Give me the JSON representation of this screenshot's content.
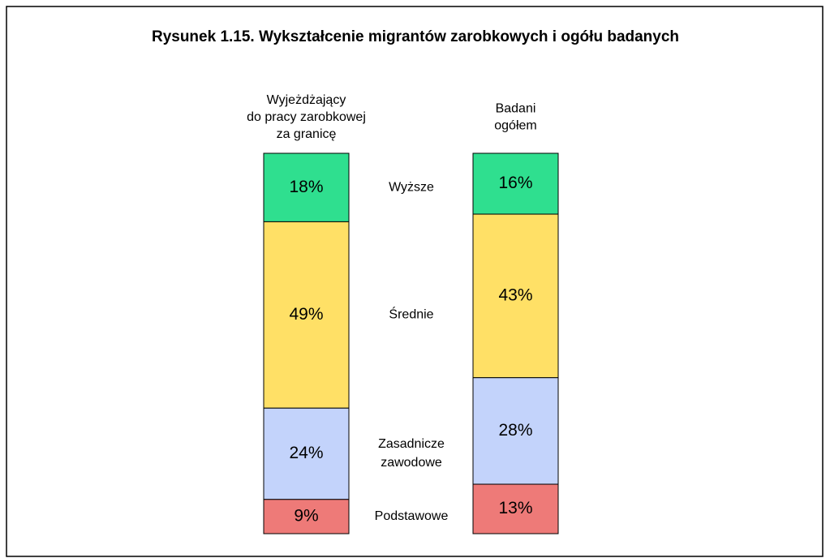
{
  "chart_data": {
    "type": "stacked_bar",
    "title": "Rysunek 1.15. Wykształcenie migrantów zarobkowych i ogółu badanych",
    "categories": [
      "Wyjeżdżający\ndo pracy zarobkowej\nza granicę",
      "Badani\nogółem"
    ],
    "series": [
      {
        "name": "Wyższe",
        "color": "#2fdf8f",
        "values": [
          18,
          16
        ],
        "value_labels": [
          "18%",
          "16%"
        ]
      },
      {
        "name": "Średnie",
        "color": "#ffe066",
        "values": [
          49,
          43
        ],
        "value_labels": [
          "49%",
          "43%"
        ]
      },
      {
        "name": "Zasadnicze\nzawodowe",
        "color": "#c3d3fb",
        "values": [
          24,
          28
        ],
        "value_labels": [
          "24%",
          "28%"
        ]
      },
      {
        "name": "Podstawowe",
        "color": "#ee7a78",
        "values": [
          9,
          13
        ],
        "value_labels": [
          "9%",
          "13%"
        ]
      }
    ]
  }
}
